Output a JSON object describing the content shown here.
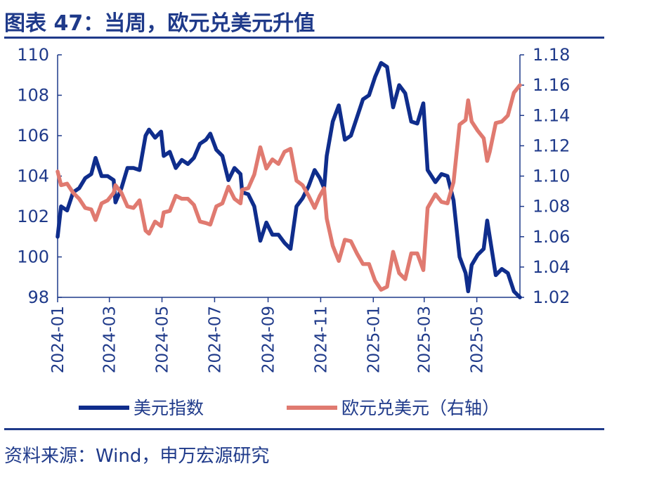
{
  "title": "图表 47：当周，欧元兑美元升值",
  "source": "资料来源：Wind，申万宏源研究",
  "chart_data": {
    "type": "line",
    "x_ticks": [
      "2024-01",
      "2024-03",
      "2024-05",
      "2024-07",
      "2024-09",
      "2024-11",
      "2025-01",
      "2025-03",
      "2025-05"
    ],
    "x_range": [
      "2024-01-01",
      "2025-06-20"
    ],
    "y_left": {
      "ticks": [
        98,
        100,
        102,
        104,
        106,
        108,
        110
      ],
      "lim": [
        98,
        110
      ]
    },
    "y_right": {
      "ticks": [
        1.02,
        1.04,
        1.06,
        1.08,
        1.1,
        1.12,
        1.14,
        1.16,
        1.18
      ],
      "lim": [
        1.02,
        1.18
      ]
    },
    "legend_position": "bottom",
    "series": [
      {
        "name": "美元指数",
        "axis": "left",
        "color": "#0f2d8c",
        "points": [
          [
            "2024-01-01",
            101.0
          ],
          [
            "2024-01-05",
            102.5
          ],
          [
            "2024-01-12",
            102.3
          ],
          [
            "2024-01-19",
            103.2
          ],
          [
            "2024-01-26",
            103.4
          ],
          [
            "2024-02-02",
            103.9
          ],
          [
            "2024-02-09",
            104.1
          ],
          [
            "2024-02-14",
            104.9
          ],
          [
            "2024-02-21",
            104.0
          ],
          [
            "2024-02-28",
            104.0
          ],
          [
            "2024-03-06",
            103.8
          ],
          [
            "2024-03-08",
            102.7
          ],
          [
            "2024-03-15",
            103.4
          ],
          [
            "2024-03-22",
            104.4
          ],
          [
            "2024-03-29",
            104.4
          ],
          [
            "2024-04-05",
            104.3
          ],
          [
            "2024-04-12",
            106.0
          ],
          [
            "2024-04-16",
            106.3
          ],
          [
            "2024-04-23",
            105.9
          ],
          [
            "2024-04-30",
            106.2
          ],
          [
            "2024-05-03",
            105.0
          ],
          [
            "2024-05-10",
            105.2
          ],
          [
            "2024-05-17",
            104.4
          ],
          [
            "2024-05-24",
            104.8
          ],
          [
            "2024-05-31",
            104.6
          ],
          [
            "2024-06-07",
            104.9
          ],
          [
            "2024-06-14",
            105.6
          ],
          [
            "2024-06-21",
            105.8
          ],
          [
            "2024-06-26",
            106.1
          ],
          [
            "2024-07-03",
            105.3
          ],
          [
            "2024-07-10",
            105.0
          ],
          [
            "2024-07-17",
            103.8
          ],
          [
            "2024-07-24",
            104.4
          ],
          [
            "2024-07-31",
            104.1
          ],
          [
            "2024-08-02",
            103.2
          ],
          [
            "2024-08-09",
            103.1
          ],
          [
            "2024-08-16",
            102.5
          ],
          [
            "2024-08-23",
            100.8
          ],
          [
            "2024-08-30",
            101.7
          ],
          [
            "2024-09-06",
            101.1
          ],
          [
            "2024-09-13",
            101.1
          ],
          [
            "2024-09-20",
            100.7
          ],
          [
            "2024-09-27",
            100.4
          ],
          [
            "2024-10-04",
            102.5
          ],
          [
            "2024-10-11",
            102.9
          ],
          [
            "2024-10-18",
            103.5
          ],
          [
            "2024-10-25",
            104.3
          ],
          [
            "2024-10-31",
            103.9
          ],
          [
            "2024-11-05",
            103.4
          ],
          [
            "2024-11-08",
            105.0
          ],
          [
            "2024-11-15",
            106.7
          ],
          [
            "2024-11-22",
            107.5
          ],
          [
            "2024-11-29",
            105.8
          ],
          [
            "2024-12-06",
            106.0
          ],
          [
            "2024-12-13",
            106.9
          ],
          [
            "2024-12-20",
            107.8
          ],
          [
            "2024-12-27",
            108.0
          ],
          [
            "2025-01-03",
            108.9
          ],
          [
            "2025-01-10",
            109.6
          ],
          [
            "2025-01-17",
            109.4
          ],
          [
            "2025-01-24",
            107.4
          ],
          [
            "2025-01-31",
            108.5
          ],
          [
            "2025-02-07",
            108.1
          ],
          [
            "2025-02-14",
            106.7
          ],
          [
            "2025-02-21",
            106.6
          ],
          [
            "2025-02-28",
            107.6
          ],
          [
            "2025-03-05",
            104.3
          ],
          [
            "2025-03-14",
            103.7
          ],
          [
            "2025-03-21",
            104.1
          ],
          [
            "2025-03-28",
            104.0
          ],
          [
            "2025-04-04",
            102.8
          ],
          [
            "2025-04-11",
            100.0
          ],
          [
            "2025-04-18",
            99.2
          ],
          [
            "2025-04-21",
            98.3
          ],
          [
            "2025-04-25",
            99.6
          ],
          [
            "2025-05-02",
            100.1
          ],
          [
            "2025-05-09",
            100.4
          ],
          [
            "2025-05-13",
            101.8
          ],
          [
            "2025-05-16",
            101.0
          ],
          [
            "2025-05-23",
            99.1
          ],
          [
            "2025-05-30",
            99.4
          ],
          [
            "2025-06-06",
            99.2
          ],
          [
            "2025-06-13",
            98.3
          ],
          [
            "2025-06-20",
            98.0
          ]
        ]
      },
      {
        "name": "欧元兑美元（右轴）",
        "axis": "right",
        "color": "#e07a70",
        "points": [
          [
            "2024-01-01",
            1.103
          ],
          [
            "2024-01-05",
            1.094
          ],
          [
            "2024-01-12",
            1.095
          ],
          [
            "2024-01-19",
            1.089
          ],
          [
            "2024-01-26",
            1.085
          ],
          [
            "2024-02-02",
            1.079
          ],
          [
            "2024-02-09",
            1.078
          ],
          [
            "2024-02-14",
            1.071
          ],
          [
            "2024-02-21",
            1.082
          ],
          [
            "2024-02-28",
            1.084
          ],
          [
            "2024-03-06",
            1.089
          ],
          [
            "2024-03-08",
            1.094
          ],
          [
            "2024-03-15",
            1.089
          ],
          [
            "2024-03-22",
            1.08
          ],
          [
            "2024-03-29",
            1.079
          ],
          [
            "2024-04-05",
            1.084
          ],
          [
            "2024-04-12",
            1.064
          ],
          [
            "2024-04-16",
            1.062
          ],
          [
            "2024-04-23",
            1.07
          ],
          [
            "2024-04-30",
            1.067
          ],
          [
            "2024-05-03",
            1.076
          ],
          [
            "2024-05-10",
            1.077
          ],
          [
            "2024-05-17",
            1.087
          ],
          [
            "2024-05-24",
            1.085
          ],
          [
            "2024-05-31",
            1.085
          ],
          [
            "2024-06-07",
            1.081
          ],
          [
            "2024-06-14",
            1.07
          ],
          [
            "2024-06-21",
            1.069
          ],
          [
            "2024-06-26",
            1.068
          ],
          [
            "2024-07-03",
            1.08
          ],
          [
            "2024-07-10",
            1.082
          ],
          [
            "2024-07-17",
            1.093
          ],
          [
            "2024-07-24",
            1.085
          ],
          [
            "2024-07-31",
            1.082
          ],
          [
            "2024-08-02",
            1.091
          ],
          [
            "2024-08-09",
            1.092
          ],
          [
            "2024-08-16",
            1.101
          ],
          [
            "2024-08-23",
            1.119
          ],
          [
            "2024-08-30",
            1.105
          ],
          [
            "2024-09-06",
            1.111
          ],
          [
            "2024-09-13",
            1.108
          ],
          [
            "2024-09-20",
            1.116
          ],
          [
            "2024-09-27",
            1.118
          ],
          [
            "2024-10-04",
            1.097
          ],
          [
            "2024-10-11",
            1.094
          ],
          [
            "2024-10-18",
            1.087
          ],
          [
            "2024-10-25",
            1.079
          ],
          [
            "2024-10-31",
            1.087
          ],
          [
            "2024-11-05",
            1.092
          ],
          [
            "2024-11-08",
            1.072
          ],
          [
            "2024-11-15",
            1.054
          ],
          [
            "2024-11-22",
            1.044
          ],
          [
            "2024-11-29",
            1.058
          ],
          [
            "2024-12-06",
            1.057
          ],
          [
            "2024-12-13",
            1.049
          ],
          [
            "2024-12-20",
            1.042
          ],
          [
            "2024-12-27",
            1.042
          ],
          [
            "2025-01-03",
            1.031
          ],
          [
            "2025-01-10",
            1.025
          ],
          [
            "2025-01-17",
            1.027
          ],
          [
            "2025-01-24",
            1.05
          ],
          [
            "2025-01-31",
            1.036
          ],
          [
            "2025-02-07",
            1.032
          ],
          [
            "2025-02-14",
            1.049
          ],
          [
            "2025-02-21",
            1.049
          ],
          [
            "2025-02-28",
            1.038
          ],
          [
            "2025-03-05",
            1.079
          ],
          [
            "2025-03-14",
            1.088
          ],
          [
            "2025-03-21",
            1.083
          ],
          [
            "2025-03-28",
            1.082
          ],
          [
            "2025-04-04",
            1.096
          ],
          [
            "2025-04-11",
            1.134
          ],
          [
            "2025-04-18",
            1.137
          ],
          [
            "2025-04-21",
            1.15
          ],
          [
            "2025-04-25",
            1.136
          ],
          [
            "2025-05-02",
            1.13
          ],
          [
            "2025-05-09",
            1.125
          ],
          [
            "2025-05-13",
            1.11
          ],
          [
            "2025-05-16",
            1.116
          ],
          [
            "2025-05-23",
            1.135
          ],
          [
            "2025-05-30",
            1.136
          ],
          [
            "2025-06-06",
            1.14
          ],
          [
            "2025-06-13",
            1.155
          ],
          [
            "2025-06-20",
            1.16
          ]
        ]
      }
    ]
  }
}
